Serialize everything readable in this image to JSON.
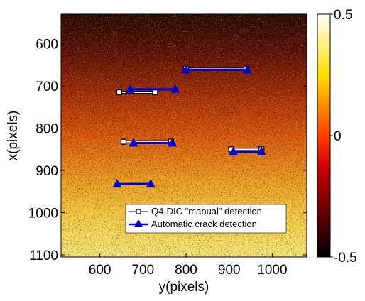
{
  "chart_data": {
    "type": "heatmap",
    "title": "",
    "xlabel": "y(pixels)",
    "ylabel": "x(pixels)",
    "xlim": [
      510,
      1080
    ],
    "ylim": [
      1105,
      530
    ],
    "x_ticks": [
      "600",
      "700",
      "800",
      "900",
      "1000"
    ],
    "x_tick_values": [
      600,
      700,
      800,
      900,
      1000
    ],
    "y_ticks": [
      "600",
      "700",
      "800",
      "900",
      "1000",
      "1100"
    ],
    "y_tick_values": [
      600,
      700,
      800,
      900,
      1000,
      1100
    ],
    "colorbar": {
      "range": [
        -0.5,
        0.5
      ],
      "ticks": [
        "0.5",
        "0",
        "-0.5"
      ],
      "tick_values": [
        0.5,
        0,
        -0.5
      ],
      "colormap": "hot"
    },
    "legend": {
      "placement": "lower-right",
      "entries": [
        "Q4-DIC \"manual\" detection",
        "Automatic crack detection"
      ]
    },
    "series": [
      {
        "name": "Q4-DIC \"manual\" detection",
        "color": "#ffffff",
        "marker": "square",
        "segments": [
          [
            [
              645,
              715
            ],
            [
              728,
              715
            ]
          ],
          [
            [
              800,
              660
            ],
            [
              940,
              660
            ]
          ],
          [
            [
              655,
              832
            ],
            [
              765,
              832
            ]
          ],
          [
            [
              905,
              850
            ],
            [
              975,
              850
            ]
          ]
        ]
      },
      {
        "name": "Automatic crack detection",
        "color": "#0000cc",
        "marker": "triangle-up",
        "segments": [
          [
            [
              670,
              708
            ],
            [
              775,
              708
            ]
          ],
          [
            [
              800,
              662
            ],
            [
              942,
              662
            ]
          ],
          [
            [
              678,
              835
            ],
            [
              768,
              835
            ]
          ],
          [
            [
              910,
              856
            ],
            [
              975,
              856
            ]
          ],
          [
            [
              640,
              932
            ],
            [
              718,
              932
            ]
          ]
        ]
      }
    ]
  }
}
